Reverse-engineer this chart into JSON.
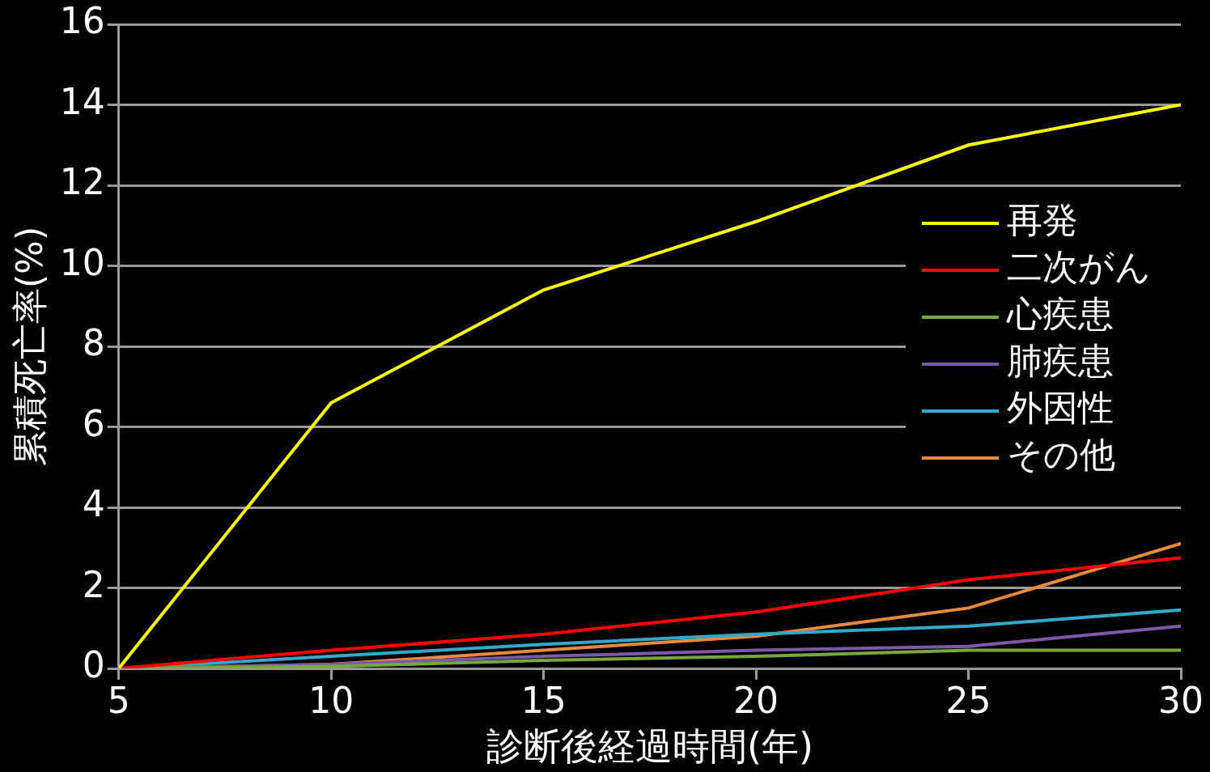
{
  "chart_data": {
    "type": "line",
    "xlabel": "診断後経過時間(年)",
    "ylabel": "累積死亡率(%)",
    "x": [
      5,
      10,
      15,
      20,
      25,
      30
    ],
    "xlim": [
      5,
      30
    ],
    "xticks": [
      5,
      10,
      15,
      20,
      25,
      30
    ],
    "ylim": [
      0,
      16
    ],
    "yticks": [
      0,
      2,
      4,
      6,
      8,
      10,
      12,
      14,
      16
    ],
    "grid": "y",
    "legend": "right",
    "marker": "none",
    "line_style": "solid",
    "series": [
      {
        "name": "再発",
        "color": "#ffff00",
        "values": [
          0,
          6.6,
          9.4,
          11.1,
          13.0,
          14.0
        ]
      },
      {
        "name": "二次がん",
        "color": "#ff0000",
        "values": [
          0,
          0.45,
          0.85,
          1.4,
          2.2,
          2.75
        ]
      },
      {
        "name": "心疾患",
        "color": "#77a83a",
        "values": [
          0,
          0.05,
          0.2,
          0.3,
          0.45,
          0.45
        ]
      },
      {
        "name": "肺疾患",
        "color": "#7a5aa8",
        "values": [
          0,
          0.1,
          0.3,
          0.45,
          0.55,
          1.05
        ]
      },
      {
        "name": "外因性",
        "color": "#33a8c8",
        "values": [
          0,
          0.3,
          0.6,
          0.85,
          1.05,
          1.45
        ]
      },
      {
        "name": "その他",
        "color": "#e88a3a",
        "values": [
          0,
          0.1,
          0.45,
          0.8,
          1.5,
          3.1
        ]
      }
    ]
  }
}
